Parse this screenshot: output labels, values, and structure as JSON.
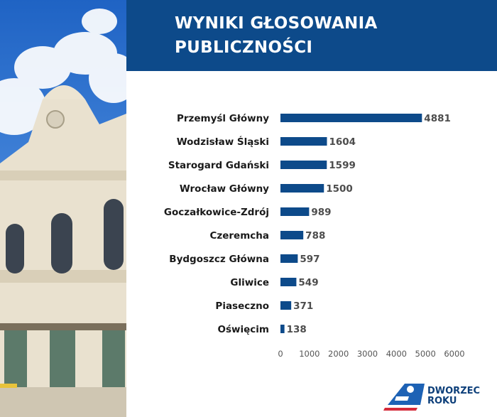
{
  "header": {
    "title_line1": "WYNIKI GŁOSOWANIA",
    "title_line2": "PUBLICZNOŚCI"
  },
  "logo": {
    "line1": "DWORZEC",
    "line2": "ROKU"
  },
  "colors": {
    "header_bg": "#0d4a8a",
    "bar": "#0d4a8a",
    "label": "#1a1a1a",
    "value_label": "#4d4d4d",
    "tick_label": "#555555"
  },
  "chart_data": {
    "type": "bar",
    "orientation": "horizontal",
    "categories": [
      "Przemyśl Główny",
      "Wodzisław Śląski",
      "Starogard Gdański",
      "Wrocław Główny",
      "Goczałkowice-Zdrój",
      "Czeremcha",
      "Bydgoszcz Główna",
      "Gliwice",
      "Piaseczno",
      "Oświęcim"
    ],
    "values": [
      4881,
      1604,
      1599,
      1500,
      989,
      788,
      597,
      549,
      371,
      138
    ],
    "xlim": [
      0,
      6000
    ],
    "xticks": [
      0,
      1000,
      2000,
      3000,
      4000,
      5000,
      6000
    ],
    "grid": false,
    "legend": "none"
  }
}
